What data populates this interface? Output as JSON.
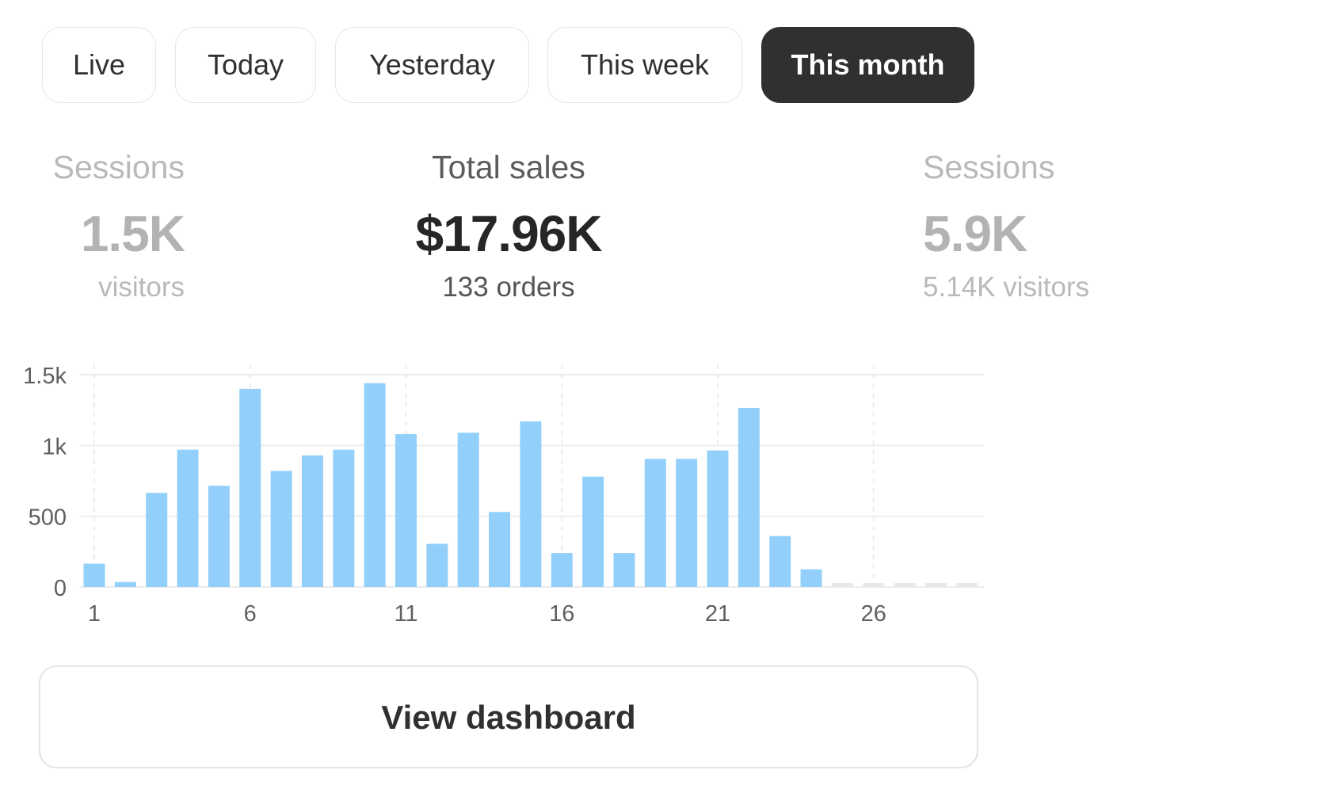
{
  "tabs": [
    {
      "label": "Live",
      "active": false
    },
    {
      "label": "Today",
      "active": false
    },
    {
      "label": "Yesterday",
      "active": false
    },
    {
      "label": "This week",
      "active": false
    },
    {
      "label": "This month",
      "active": true
    }
  ],
  "metrics": {
    "left": {
      "title": "Sessions",
      "value": "1.5K",
      "sub": "visitors"
    },
    "center": {
      "title": "Total sales",
      "value": "$17.96K",
      "sub": "133 orders"
    },
    "right": {
      "title": "Sessions",
      "value": "5.9K",
      "sub": "5.14K visitors"
    }
  },
  "colors": {
    "bar": "#92d0fb",
    "placeholder_bar": "#e9e9e9",
    "grid": "#ececec",
    "active_tab": "#303030"
  },
  "chart_data": {
    "type": "bar",
    "x": [
      1,
      2,
      3,
      4,
      5,
      6,
      7,
      8,
      9,
      10,
      11,
      12,
      13,
      14,
      15,
      16,
      17,
      18,
      19,
      20,
      21,
      22,
      23,
      24,
      25,
      26,
      27,
      28,
      29
    ],
    "values": [
      165,
      35,
      665,
      970,
      715,
      1400,
      820,
      930,
      970,
      1440,
      1080,
      305,
      1090,
      530,
      1170,
      240,
      780,
      240,
      905,
      905,
      965,
      1265,
      360,
      125,
      null,
      null,
      null,
      null,
      null
    ],
    "xticks": [
      "1",
      "6",
      "11",
      "16",
      "21",
      "26"
    ],
    "yticks": [
      "0",
      "500",
      "1k",
      "1.5k"
    ],
    "ylim": [
      0,
      1500
    ],
    "grid": true
  },
  "actions": {
    "view_dashboard": "View dashboard"
  }
}
